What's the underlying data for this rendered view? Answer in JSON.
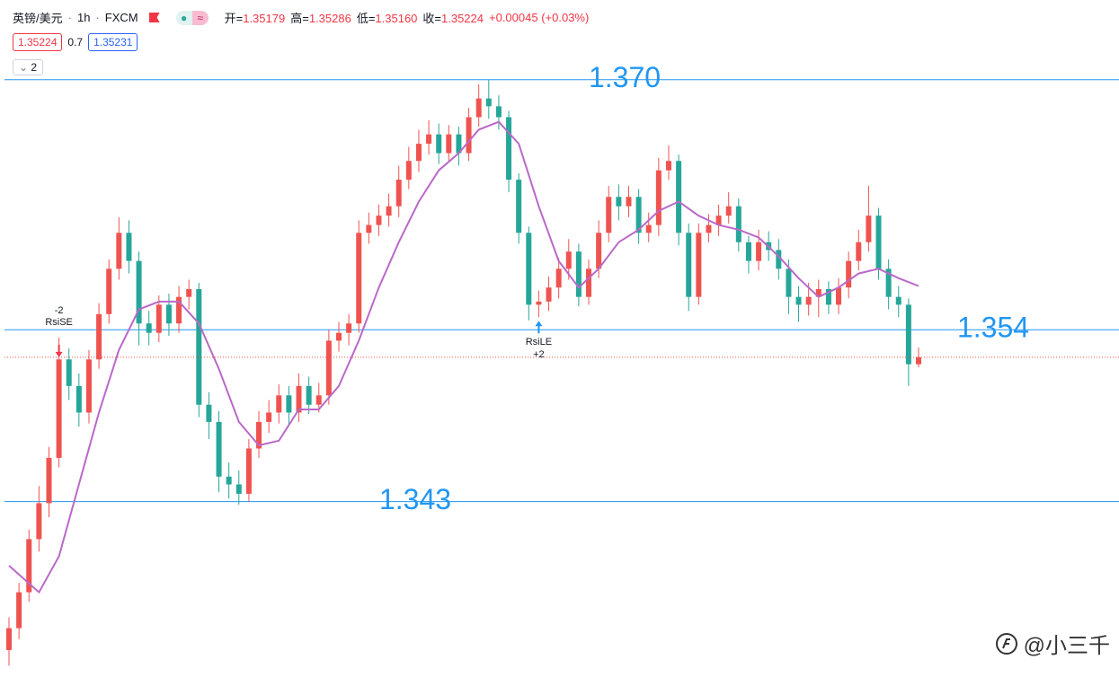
{
  "header": {
    "symbol": "英镑/美元",
    "interval": "1h",
    "source": "FXCM",
    "ohlc": [
      {
        "label": "开=",
        "value": "1.35179"
      },
      {
        "label": "高=",
        "value": "1.35286"
      },
      {
        "label": "低=",
        "value": "1.35160"
      },
      {
        "label": "收=",
        "value": "1.35224"
      }
    ],
    "change": "+0.00045 (+0.03%)",
    "sell": "1.35224",
    "spread": "0.7",
    "buy": "1.35231",
    "indicator_count": "2"
  },
  "watermark": "@小三千",
  "chart_data": {
    "type": "candlestick",
    "up_color": "#ef5350",
    "down_color": "#26a69a",
    "ylim": [
      1.3312,
      1.3751
    ],
    "open": [
      1.3335,
      1.3349,
      1.3372,
      1.3406,
      1.3429,
      1.3458,
      1.3521,
      1.3504,
      1.3487,
      1.3521,
      1.355,
      1.3579,
      1.3602,
      1.3584,
      1.3544,
      1.3538,
      1.3556,
      1.3544,
      1.3561,
      1.3566,
      1.3492,
      1.3481,
      1.3446,
      1.3441,
      1.3435,
      1.3464,
      1.3481,
      1.3487,
      1.3498,
      1.3487,
      1.3504,
      1.3492,
      1.3498,
      1.3533,
      1.3538,
      1.3544,
      1.3602,
      1.3607,
      1.3613,
      1.3619,
      1.3636,
      1.3648,
      1.3659,
      1.3665,
      1.3653,
      1.3665,
      1.3653,
      1.3676,
      1.3688,
      1.3683,
      1.3676,
      1.3636,
      1.3602,
      1.3556,
      1.3558,
      1.3567,
      1.3579,
      1.359,
      1.3561,
      1.3579,
      1.3602,
      1.3625,
      1.3619,
      1.3625,
      1.3602,
      1.3607,
      1.3642,
      1.3648,
      1.3602,
      1.3561,
      1.3602,
      1.3607,
      1.3613,
      1.3619,
      1.3596,
      1.3584,
      1.3596,
      1.3591,
      1.3579,
      1.3561,
      1.3556,
      1.3561,
      1.3566,
      1.3556,
      1.3567,
      1.3584,
      1.3596,
      1.3613,
      1.3579,
      1.3561,
      1.3556,
      1.35179
    ],
    "high": [
      1.3356,
      1.3378,
      1.3412,
      1.344,
      1.3465,
      1.3535,
      1.3528,
      1.3512,
      1.3527,
      1.3557,
      1.3585,
      1.3612,
      1.361,
      1.359,
      1.3552,
      1.3562,
      1.3563,
      1.3568,
      1.3572,
      1.357,
      1.35,
      1.3488,
      1.3455,
      1.345,
      1.347,
      1.3488,
      1.3495,
      1.3505,
      1.3504,
      1.3512,
      1.351,
      1.3506,
      1.354,
      1.3545,
      1.355,
      1.361,
      1.3615,
      1.362,
      1.3627,
      1.3645,
      1.3657,
      1.3668,
      1.3674,
      1.3672,
      1.3671,
      1.367,
      1.3682,
      1.3697,
      1.37,
      1.369,
      1.368,
      1.364,
      1.3606,
      1.3565,
      1.3574,
      1.3586,
      1.3598,
      1.3595,
      1.3585,
      1.361,
      1.3632,
      1.3633,
      1.3632,
      1.363,
      1.3615,
      1.365,
      1.3658,
      1.3652,
      1.3608,
      1.3608,
      1.3614,
      1.362,
      1.3628,
      1.3624,
      1.36,
      1.3604,
      1.3603,
      1.3598,
      1.3585,
      1.3568,
      1.357,
      1.3572,
      1.3571,
      1.3573,
      1.359,
      1.3604,
      1.3632,
      1.3618,
      1.3585,
      1.3568,
      1.356,
      1.35286
    ],
    "low": [
      1.3325,
      1.3342,
      1.3366,
      1.3398,
      1.342,
      1.3452,
      1.3495,
      1.3478,
      1.348,
      1.3515,
      1.3544,
      1.3572,
      1.3576,
      1.353,
      1.353,
      1.3532,
      1.3536,
      1.3538,
      1.3553,
      1.3484,
      1.347,
      1.3436,
      1.3432,
      1.3428,
      1.343,
      1.3458,
      1.3474,
      1.348,
      1.3479,
      1.3481,
      1.3486,
      1.3487,
      1.3492,
      1.3526,
      1.353,
      1.3538,
      1.3595,
      1.36,
      1.3606,
      1.3612,
      1.363,
      1.3641,
      1.3652,
      1.3646,
      1.3648,
      1.3645,
      1.3648,
      1.367,
      1.3675,
      1.3668,
      1.3628,
      1.3595,
      1.3546,
      1.3548,
      1.3552,
      1.356,
      1.3572,
      1.3555,
      1.3556,
      1.3573,
      1.3596,
      1.361,
      1.3612,
      1.3595,
      1.3596,
      1.36,
      1.3636,
      1.3594,
      1.3552,
      1.3556,
      1.3596,
      1.36,
      1.3608,
      1.359,
      1.3576,
      1.3578,
      1.3584,
      1.3572,
      1.355,
      1.3545,
      1.3549,
      1.3548,
      1.355,
      1.355,
      1.356,
      1.3578,
      1.359,
      1.3572,
      1.3553,
      1.3548,
      1.3504,
      1.3516
    ],
    "close": [
      1.3349,
      1.3372,
      1.3406,
      1.3429,
      1.3458,
      1.3521,
      1.3504,
      1.3487,
      1.3521,
      1.355,
      1.3579,
      1.3602,
      1.3584,
      1.3544,
      1.3538,
      1.3556,
      1.3544,
      1.3561,
      1.3566,
      1.3492,
      1.3481,
      1.3446,
      1.3441,
      1.3435,
      1.3464,
      1.3481,
      1.3487,
      1.3498,
      1.3487,
      1.3504,
      1.3492,
      1.3498,
      1.3533,
      1.3538,
      1.3544,
      1.3602,
      1.3607,
      1.3613,
      1.3619,
      1.3636,
      1.3648,
      1.3659,
      1.3665,
      1.3653,
      1.3665,
      1.3653,
      1.3676,
      1.3688,
      1.3683,
      1.3676,
      1.3636,
      1.3602,
      1.3556,
      1.3558,
      1.3567,
      1.3579,
      1.359,
      1.3561,
      1.3579,
      1.3602,
      1.3625,
      1.3619,
      1.3625,
      1.3602,
      1.3607,
      1.3642,
      1.3648,
      1.3602,
      1.3561,
      1.3602,
      1.3607,
      1.3613,
      1.3619,
      1.3596,
      1.3584,
      1.3596,
      1.3591,
      1.3579,
      1.3561,
      1.3556,
      1.3561,
      1.3566,
      1.3556,
      1.3567,
      1.3584,
      1.3596,
      1.3613,
      1.3579,
      1.3561,
      1.3556,
      1.35179,
      1.35224
    ],
    "ma": {
      "color": "#ba68c8",
      "x": [
        0,
        3,
        5,
        7,
        9,
        11,
        13,
        15,
        17,
        19,
        21,
        23,
        25,
        27,
        29,
        31,
        33,
        35,
        37,
        39,
        41,
        43,
        45,
        47,
        49,
        51,
        53,
        55,
        57,
        59,
        61,
        63,
        65,
        67,
        69,
        71,
        73,
        75,
        77,
        79,
        81,
        83,
        85,
        87,
        89,
        91
      ],
      "values": [
        1.3389,
        1.3372,
        1.3395,
        1.3441,
        1.3487,
        1.3527,
        1.3553,
        1.3558,
        1.3558,
        1.3544,
        1.3515,
        1.3481,
        1.3466,
        1.3469,
        1.3489,
        1.3489,
        1.3504,
        1.3533,
        1.3567,
        1.3596,
        1.3622,
        1.3642,
        1.3653,
        1.3668,
        1.3673,
        1.3659,
        1.3619,
        1.3584,
        1.3567,
        1.3579,
        1.3596,
        1.3604,
        1.3616,
        1.3622,
        1.3613,
        1.3607,
        1.3604,
        1.3599,
        1.3587,
        1.3573,
        1.3561,
        1.3567,
        1.3576,
        1.3579,
        1.3573,
        1.3568
      ]
    },
    "levels": {
      "color": "#2196f3",
      "items": [
        {
          "value": 1.37,
          "label": "1.370"
        },
        {
          "value": 1.354,
          "label": "1.354"
        },
        {
          "value": 1.343,
          "label": "1.343"
        }
      ]
    },
    "last_price_color": "#ef5350",
    "signals": [
      {
        "index": 5,
        "name": "RsiSE",
        "qty": "-2",
        "side": "sell"
      },
      {
        "index": 53,
        "name": "RsiLE",
        "qty": "+2",
        "side": "buy"
      }
    ]
  }
}
